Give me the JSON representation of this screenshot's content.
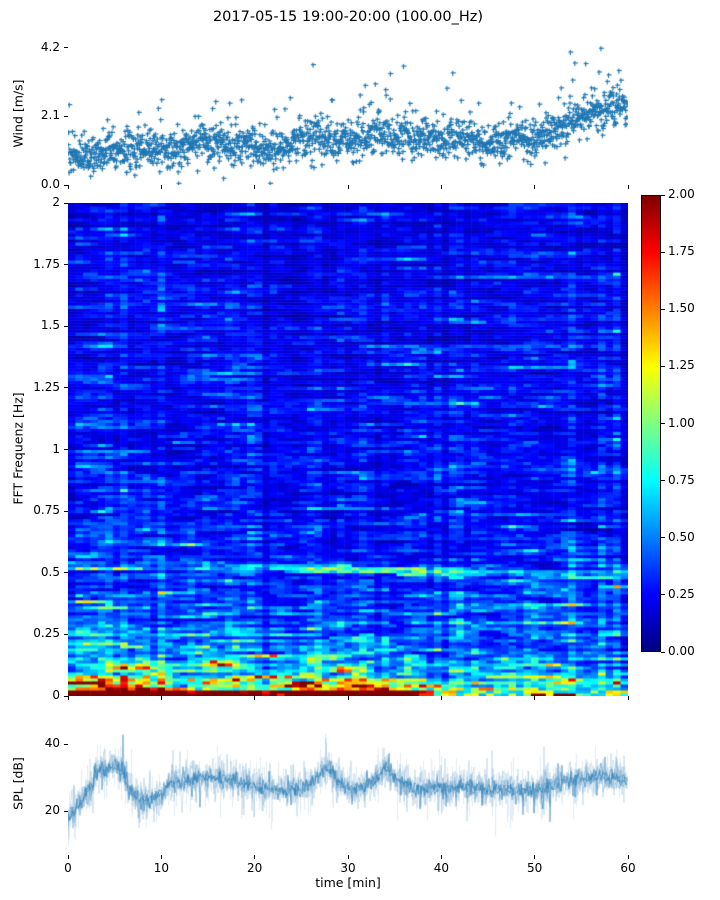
{
  "title": "2017-05-15 19:00-20:00 (100.00_Hz)",
  "xlabel": "time [min]",
  "colors": {
    "series_blue": "#1f77b4",
    "axis": "#000000",
    "background": "#ffffff"
  },
  "xticks": {
    "values": [
      0,
      10,
      20,
      30,
      40,
      50,
      60
    ],
    "labels": [
      "0",
      "10",
      "20",
      "30",
      "40",
      "50",
      "60"
    ]
  },
  "colorbar": {
    "colormap": "jet",
    "vmin": 0,
    "vmax": 2,
    "tick_values": [
      0,
      0.25,
      0.5,
      0.75,
      1.0,
      1.25,
      1.5,
      1.75,
      2.0
    ],
    "tick_labels": [
      "0.00",
      "0.25",
      "0.50",
      "0.75",
      "1.00",
      "1.25",
      "1.50",
      "1.75",
      "2.00"
    ]
  },
  "chart_data": [
    {
      "id": "wind",
      "type": "scatter",
      "marker": "+",
      "color": "#1f77b4",
      "ylabel": "Wind [m/s]",
      "xlim": [
        0,
        60
      ],
      "ylim": [
        0,
        4.28
      ],
      "ytick_values": [
        0.0,
        2.1,
        4.2
      ],
      "ytick_labels": [
        "0.0",
        "2.1",
        "4.2"
      ],
      "n_points": 1800,
      "spread": 0.28,
      "trend": [
        [
          0,
          0.85
        ],
        [
          2,
          0.8
        ],
        [
          4,
          0.95
        ],
        [
          6,
          1.1
        ],
        [
          8,
          1.15
        ],
        [
          10,
          1.05
        ],
        [
          12,
          1.1
        ],
        [
          14,
          1.35
        ],
        [
          16,
          1.2
        ],
        [
          18,
          1.15
        ],
        [
          20,
          1.2
        ],
        [
          22,
          1.1
        ],
        [
          24,
          1.3
        ],
        [
          26,
          1.45
        ],
        [
          28,
          1.35
        ],
        [
          30,
          1.3
        ],
        [
          32,
          1.45
        ],
        [
          34,
          1.55
        ],
        [
          36,
          1.35
        ],
        [
          38,
          1.45
        ],
        [
          40,
          1.35
        ],
        [
          42,
          1.5
        ],
        [
          44,
          1.35
        ],
        [
          46,
          1.25
        ],
        [
          48,
          1.45
        ],
        [
          50,
          1.35
        ],
        [
          52,
          1.6
        ],
        [
          54,
          2.0
        ],
        [
          56,
          2.2
        ],
        [
          58,
          2.35
        ],
        [
          60,
          2.3
        ]
      ],
      "gust": [
        [
          0,
          0.45
        ],
        [
          5,
          0.4
        ],
        [
          9,
          0.75
        ],
        [
          12,
          0.45
        ],
        [
          15,
          0.85
        ],
        [
          18,
          0.5
        ],
        [
          22,
          0.7
        ],
        [
          25,
          0.6
        ],
        [
          27,
          0.9
        ],
        [
          30,
          0.6
        ],
        [
          33,
          0.7
        ],
        [
          35,
          0.9
        ],
        [
          38,
          0.6
        ],
        [
          41,
          0.8
        ],
        [
          44,
          0.6
        ],
        [
          47,
          0.8
        ],
        [
          50,
          0.6
        ],
        [
          53,
          0.9
        ],
        [
          55,
          1.0
        ],
        [
          57,
          1.3
        ],
        [
          60,
          1.0
        ]
      ],
      "max_point": [
        57.2,
        4.18
      ]
    },
    {
      "id": "spectrogram",
      "type": "heatmap",
      "colormap": "jet",
      "ylabel": "FFT Frequenz [Hz]",
      "xlim": [
        0,
        60
      ],
      "ylim": [
        0,
        2
      ],
      "vmin": 0,
      "vmax": 2,
      "ytick_values": [
        0,
        0.25,
        0.5,
        0.75,
        1,
        1.25,
        1.5,
        1.75,
        2
      ],
      "ytick_labels": [
        "0",
        "0.25",
        "0.5",
        "0.75",
        "1",
        "1.25",
        "1.5",
        "1.75",
        "2"
      ],
      "grid": {
        "n_time": 75,
        "n_freq": 164
      },
      "freq_profile": [
        [
          0,
          2.1
        ],
        [
          0.01,
          2.0
        ],
        [
          0.03,
          1.35
        ],
        [
          0.06,
          0.95
        ],
        [
          0.1,
          0.72
        ],
        [
          0.15,
          0.58
        ],
        [
          0.2,
          0.5
        ],
        [
          0.3,
          0.42
        ],
        [
          0.4,
          0.36
        ],
        [
          0.5,
          0.33
        ],
        [
          0.6,
          0.3
        ],
        [
          0.8,
          0.27
        ],
        [
          1.0,
          0.25
        ],
        [
          1.3,
          0.24
        ],
        [
          1.6,
          0.22
        ],
        [
          2.0,
          0.21
        ]
      ],
      "lowfreq_time_mod": [
        [
          0,
          1.35
        ],
        [
          3,
          1.45
        ],
        [
          6,
          1.5
        ],
        [
          10,
          1.3
        ],
        [
          13,
          0.95
        ],
        [
          16,
          1.15
        ],
        [
          19,
          0.85
        ],
        [
          22,
          0.9
        ],
        [
          24,
          1.05
        ],
        [
          26,
          1.3
        ],
        [
          29,
          1.2
        ],
        [
          31,
          1.25
        ],
        [
          34,
          1.3
        ],
        [
          36,
          1.1
        ],
        [
          39,
          0.75
        ],
        [
          42,
          0.62
        ],
        [
          45,
          0.6
        ],
        [
          48,
          0.62
        ],
        [
          51,
          0.7
        ],
        [
          54,
          0.62
        ],
        [
          57,
          0.6
        ],
        [
          60,
          0.62
        ]
      ],
      "lowfreq_extent_hz": 0.38,
      "bottom_band": {
        "below_hz": 0.025,
        "value": 1.95
      },
      "ridge": {
        "center": [
          [
            0,
            0.535
          ],
          [
            20,
            0.525
          ],
          [
            30,
            0.515
          ],
          [
            40,
            0.505
          ],
          [
            50,
            0.497
          ],
          [
            60,
            0.49
          ]
        ],
        "halfwidth": 0.016,
        "amp": [
          [
            0,
            0.12
          ],
          [
            15,
            0.15
          ],
          [
            22,
            0.3
          ],
          [
            26,
            0.55
          ],
          [
            30,
            0.5
          ],
          [
            33,
            0.45
          ],
          [
            36,
            0.5
          ],
          [
            40,
            0.45
          ],
          [
            44,
            0.35
          ],
          [
            48,
            0.3
          ],
          [
            52,
            0.28
          ],
          [
            56,
            0.32
          ],
          [
            60,
            0.28
          ]
        ]
      }
    },
    {
      "id": "spl",
      "type": "line",
      "color": "#1f77b4",
      "ylabel": "SPL [dB]",
      "xlabel": "time [min]",
      "xlim": [
        0,
        60
      ],
      "ylim": [
        7,
        49
      ],
      "ytick_values": [
        20,
        40
      ],
      "ytick_labels": [
        "20",
        "40"
      ],
      "noise_amp": 2.3,
      "mean_series": [
        [
          0,
          18
        ],
        [
          0.5,
          19
        ],
        [
          1,
          21
        ],
        [
          1.5,
          23
        ],
        [
          2,
          26
        ],
        [
          2.5,
          28
        ],
        [
          3,
          31
        ],
        [
          3.5,
          33
        ],
        [
          4,
          32
        ],
        [
          4.5,
          33
        ],
        [
          5,
          34
        ],
        [
          5.5,
          33
        ],
        [
          6,
          31
        ],
        [
          6.5,
          28
        ],
        [
          7,
          25
        ],
        [
          8,
          23.5
        ],
        [
          9,
          23.5
        ],
        [
          10,
          25
        ],
        [
          10.5,
          27
        ],
        [
          11,
          29
        ],
        [
          12,
          28.5
        ],
        [
          13,
          29.5
        ],
        [
          14,
          30.5
        ],
        [
          15,
          29.5
        ],
        [
          16,
          30.5
        ],
        [
          17,
          29.5
        ],
        [
          18,
          29.5
        ],
        [
          19,
          28
        ],
        [
          20,
          27.5
        ],
        [
          21,
          26.5
        ],
        [
          22,
          27
        ],
        [
          23,
          26
        ],
        [
          24,
          26.5
        ],
        [
          25,
          26.5
        ],
        [
          26,
          28
        ],
        [
          27,
          31
        ],
        [
          27.5,
          33
        ],
        [
          28,
          33.5
        ],
        [
          28.5,
          31
        ],
        [
          29,
          28.5
        ],
        [
          30,
          27
        ],
        [
          31,
          27
        ],
        [
          32,
          27.5
        ],
        [
          33,
          29
        ],
        [
          34,
          33.5
        ],
        [
          34.5,
          32
        ],
        [
          35,
          30.5
        ],
        [
          36,
          28
        ],
        [
          37,
          27.5
        ],
        [
          38,
          27
        ],
        [
          39,
          27
        ],
        [
          40,
          27.5
        ],
        [
          41,
          27
        ],
        [
          42,
          27
        ],
        [
          43,
          27.5
        ],
        [
          44,
          27
        ],
        [
          45,
          26
        ],
        [
          46,
          26.5
        ],
        [
          47,
          27
        ],
        [
          48,
          26
        ],
        [
          49,
          26
        ],
        [
          50,
          26.5
        ],
        [
          51,
          27
        ],
        [
          52,
          27.5
        ],
        [
          53,
          28.5
        ],
        [
          54,
          29.5
        ],
        [
          55,
          29.5
        ],
        [
          56,
          30
        ],
        [
          57,
          30.5
        ],
        [
          58,
          30
        ],
        [
          59,
          30
        ],
        [
          60,
          29
        ]
      ]
    }
  ]
}
